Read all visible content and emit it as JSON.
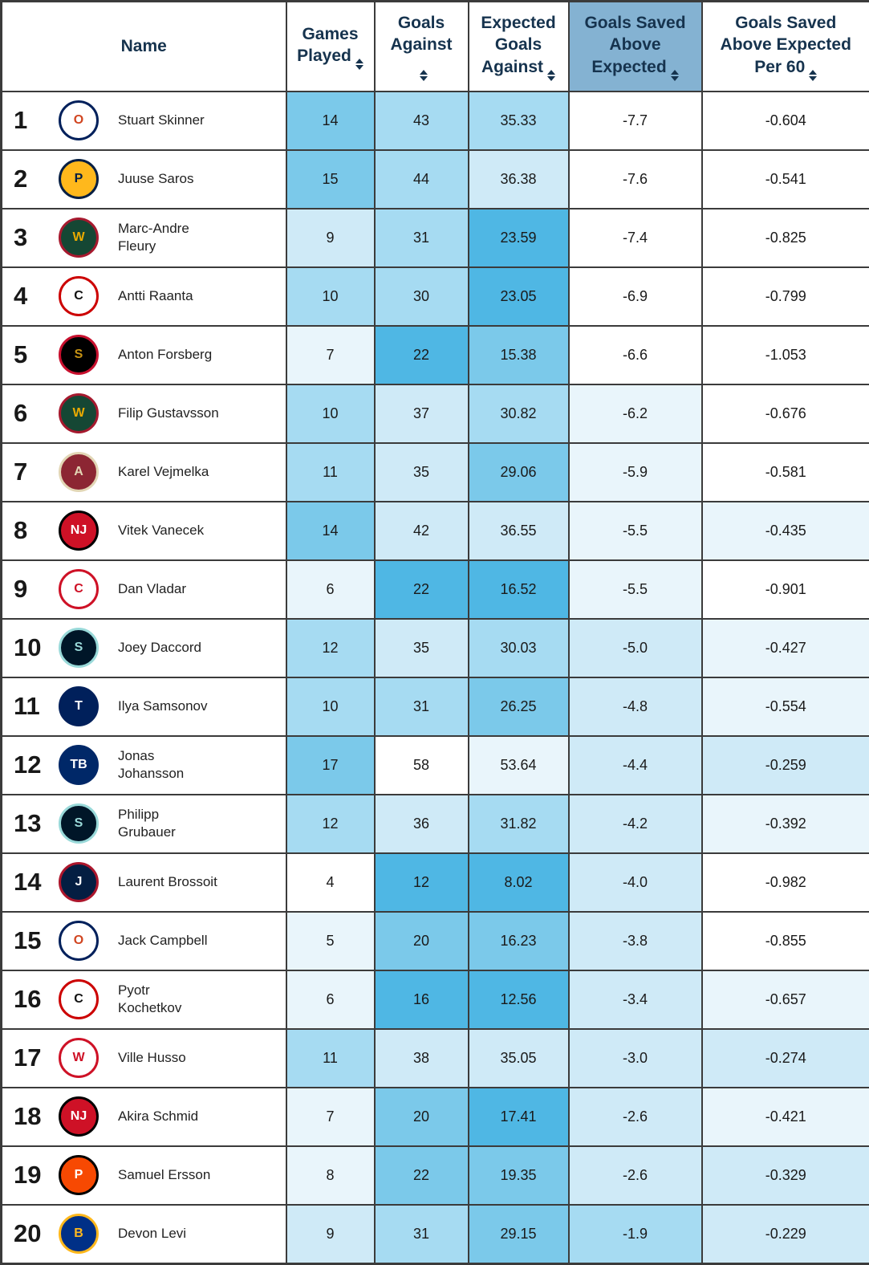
{
  "table": {
    "columns": [
      {
        "label": "Name",
        "sortable": false,
        "highlighted": false
      },
      {
        "label": "Games Played",
        "sortable": true,
        "highlighted": false
      },
      {
        "label": "Goals Against",
        "sortable": true,
        "highlighted": false
      },
      {
        "label": "Expected Goals Against",
        "sortable": true,
        "highlighted": false
      },
      {
        "label": "Goals Saved Above Expected",
        "sortable": true,
        "highlighted": true
      },
      {
        "label": "Goals Saved Above Expected Per 60",
        "sortable": true,
        "highlighted": false
      }
    ],
    "rows": [
      {
        "rank": "1",
        "team": "EDM",
        "name": "Stuart Skinner",
        "two_line": false,
        "values": [
          "14",
          "43",
          "35.33",
          "-7.7",
          "-0.604"
        ],
        "shades": [
          4,
          3,
          3,
          0,
          0
        ]
      },
      {
        "rank": "2",
        "team": "NSH",
        "name": "Juuse Saros",
        "two_line": false,
        "values": [
          "15",
          "44",
          "36.38",
          "-7.6",
          "-0.541"
        ],
        "shades": [
          4,
          3,
          2,
          0,
          0
        ]
      },
      {
        "rank": "3",
        "team": "MIN",
        "name": "Marc-Andre Fleury",
        "two_line": true,
        "values": [
          "9",
          "31",
          "23.59",
          "-7.4",
          "-0.825"
        ],
        "shades": [
          2,
          3,
          5,
          0,
          0
        ]
      },
      {
        "rank": "4",
        "team": "CAR",
        "name": "Antti Raanta",
        "two_line": false,
        "values": [
          "10",
          "30",
          "23.05",
          "-6.9",
          "-0.799"
        ],
        "shades": [
          3,
          3,
          5,
          0,
          0
        ]
      },
      {
        "rank": "5",
        "team": "OTT",
        "name": "Anton Forsberg",
        "two_line": false,
        "values": [
          "7",
          "22",
          "15.38",
          "-6.6",
          "-1.053"
        ],
        "shades": [
          1,
          5,
          4,
          0,
          0
        ]
      },
      {
        "rank": "6",
        "team": "MIN",
        "name": "Filip Gustavsson",
        "two_line": false,
        "values": [
          "10",
          "37",
          "30.82",
          "-6.2",
          "-0.676"
        ],
        "shades": [
          3,
          2,
          3,
          1,
          0
        ]
      },
      {
        "rank": "7",
        "team": "ARI",
        "name": "Karel Vejmelka",
        "two_line": false,
        "values": [
          "11",
          "35",
          "29.06",
          "-5.9",
          "-0.581"
        ],
        "shades": [
          3,
          2,
          4,
          1,
          0
        ]
      },
      {
        "rank": "8",
        "team": "NJD",
        "name": "Vitek Vanecek",
        "two_line": false,
        "values": [
          "14",
          "42",
          "36.55",
          "-5.5",
          "-0.435"
        ],
        "shades": [
          4,
          2,
          2,
          1,
          1
        ]
      },
      {
        "rank": "9",
        "team": "CGY",
        "name": "Dan Vladar",
        "two_line": false,
        "values": [
          "6",
          "22",
          "16.52",
          "-5.5",
          "-0.901"
        ],
        "shades": [
          1,
          5,
          5,
          1,
          0
        ]
      },
      {
        "rank": "10",
        "team": "SEA",
        "name": "Joey Daccord",
        "two_line": false,
        "values": [
          "12",
          "35",
          "30.03",
          "-5.0",
          "-0.427"
        ],
        "shades": [
          3,
          2,
          3,
          2,
          1
        ]
      },
      {
        "rank": "11",
        "team": "TOR",
        "name": "Ilya Samsonov",
        "two_line": false,
        "values": [
          "10",
          "31",
          "26.25",
          "-4.8",
          "-0.554"
        ],
        "shades": [
          3,
          3,
          4,
          2,
          1
        ]
      },
      {
        "rank": "12",
        "team": "TBL",
        "name": "Jonas Johansson",
        "two_line": true,
        "values": [
          "17",
          "58",
          "53.64",
          "-4.4",
          "-0.259"
        ],
        "shades": [
          4,
          0,
          1,
          2,
          2
        ]
      },
      {
        "rank": "13",
        "team": "SEA",
        "name": "Philipp Grubauer",
        "two_line": true,
        "values": [
          "12",
          "36",
          "31.82",
          "-4.2",
          "-0.392"
        ],
        "shades": [
          3,
          2,
          3,
          2,
          1
        ]
      },
      {
        "rank": "14",
        "team": "WPG",
        "name": "Laurent Brossoit",
        "two_line": false,
        "values": [
          "4",
          "12",
          "8.02",
          "-4.0",
          "-0.982"
        ],
        "shades": [
          0,
          5,
          5,
          2,
          0
        ]
      },
      {
        "rank": "15",
        "team": "EDM",
        "name": "Jack Campbell",
        "two_line": false,
        "values": [
          "5",
          "20",
          "16.23",
          "-3.8",
          "-0.855"
        ],
        "shades": [
          1,
          4,
          4,
          2,
          0
        ]
      },
      {
        "rank": "16",
        "team": "CAR",
        "name": "Pyotr Kochetkov",
        "two_line": true,
        "values": [
          "6",
          "16",
          "12.56",
          "-3.4",
          "-0.657"
        ],
        "shades": [
          1,
          5,
          5,
          2,
          1
        ]
      },
      {
        "rank": "17",
        "team": "DET",
        "name": "Ville Husso",
        "two_line": false,
        "values": [
          "11",
          "38",
          "35.05",
          "-3.0",
          "-0.274"
        ],
        "shades": [
          3,
          2,
          2,
          2,
          2
        ]
      },
      {
        "rank": "18",
        "team": "NJD",
        "name": "Akira Schmid",
        "two_line": false,
        "values": [
          "7",
          "20",
          "17.41",
          "-2.6",
          "-0.421"
        ],
        "shades": [
          1,
          4,
          5,
          2,
          1
        ]
      },
      {
        "rank": "19",
        "team": "PHI",
        "name": "Samuel Ersson",
        "two_line": false,
        "values": [
          "8",
          "22",
          "19.35",
          "-2.6",
          "-0.329"
        ],
        "shades": [
          1,
          4,
          4,
          2,
          2
        ]
      },
      {
        "rank": "20",
        "team": "BUF",
        "name": "Devon Levi",
        "two_line": false,
        "values": [
          "9",
          "31",
          "29.15",
          "-1.9",
          "-0.229"
        ],
        "shades": [
          2,
          3,
          4,
          3,
          2
        ]
      }
    ]
  },
  "teams": {
    "EDM": {
      "name": "Edmonton Oilers",
      "fill": "#ffffff",
      "ring": "#00205b",
      "label": "O",
      "labelColor": "#d14520"
    },
    "NSH": {
      "name": "Nashville Predators",
      "fill": "#ffb81c",
      "ring": "#041e42",
      "label": "P",
      "labelColor": "#041e42"
    },
    "MIN": {
      "name": "Minnesota Wild",
      "fill": "#154734",
      "ring": "#a6192e",
      "label": "W",
      "labelColor": "#eaaa00"
    },
    "CAR": {
      "name": "Carolina Hurricanes",
      "fill": "#ffffff",
      "ring": "#cc0000",
      "label": "C",
      "labelColor": "#111111"
    },
    "OTT": {
      "name": "Ottawa Senators",
      "fill": "#000000",
      "ring": "#c8102e",
      "label": "S",
      "labelColor": "#c69214"
    },
    "ARI": {
      "name": "Arizona Coyotes",
      "fill": "#8c2633",
      "ring": "#e2d6b5",
      "label": "A",
      "labelColor": "#e2d6b5"
    },
    "NJD": {
      "name": "New Jersey Devils",
      "fill": "#ce1126",
      "ring": "#000000",
      "label": "NJ",
      "labelColor": "#ffffff"
    },
    "CGY": {
      "name": "Calgary Flames",
      "fill": "#ffffff",
      "ring": "#ce1126",
      "label": "C",
      "labelColor": "#ce1126"
    },
    "SEA": {
      "name": "Seattle Kraken",
      "fill": "#001628",
      "ring": "#99d9d9",
      "label": "S",
      "labelColor": "#99d9d9"
    },
    "TOR": {
      "name": "Toronto Maple Leafs",
      "fill": "#00205b",
      "ring": "#00205b",
      "label": "T",
      "labelColor": "#ffffff"
    },
    "TBL": {
      "name": "Tampa Bay Lightning",
      "fill": "#002868",
      "ring": "#002868",
      "label": "TB",
      "labelColor": "#ffffff"
    },
    "WPG": {
      "name": "Winnipeg Jets",
      "fill": "#041e42",
      "ring": "#ac162c",
      "label": "J",
      "labelColor": "#ffffff"
    },
    "DET": {
      "name": "Detroit Red Wings",
      "fill": "#ffffff",
      "ring": "#ce1126",
      "label": "W",
      "labelColor": "#ce1126"
    },
    "PHI": {
      "name": "Philadelphia Flyers",
      "fill": "#f74902",
      "ring": "#000000",
      "label": "P",
      "labelColor": "#ffffff"
    },
    "BUF": {
      "name": "Buffalo Sabres",
      "fill": "#003087",
      "ring": "#ffb81c",
      "label": "B",
      "labelColor": "#ffb81c"
    }
  },
  "colors": {
    "heat_palette": [
      "#ffffff",
      "#e9f5fb",
      "#cfeaf7",
      "#a6dbf2",
      "#7bc9ea",
      "#4fb7e4"
    ],
    "highlight_header_bg": "#84b2d2",
    "header_text": "#16334e",
    "border": "#3b3b3b"
  }
}
